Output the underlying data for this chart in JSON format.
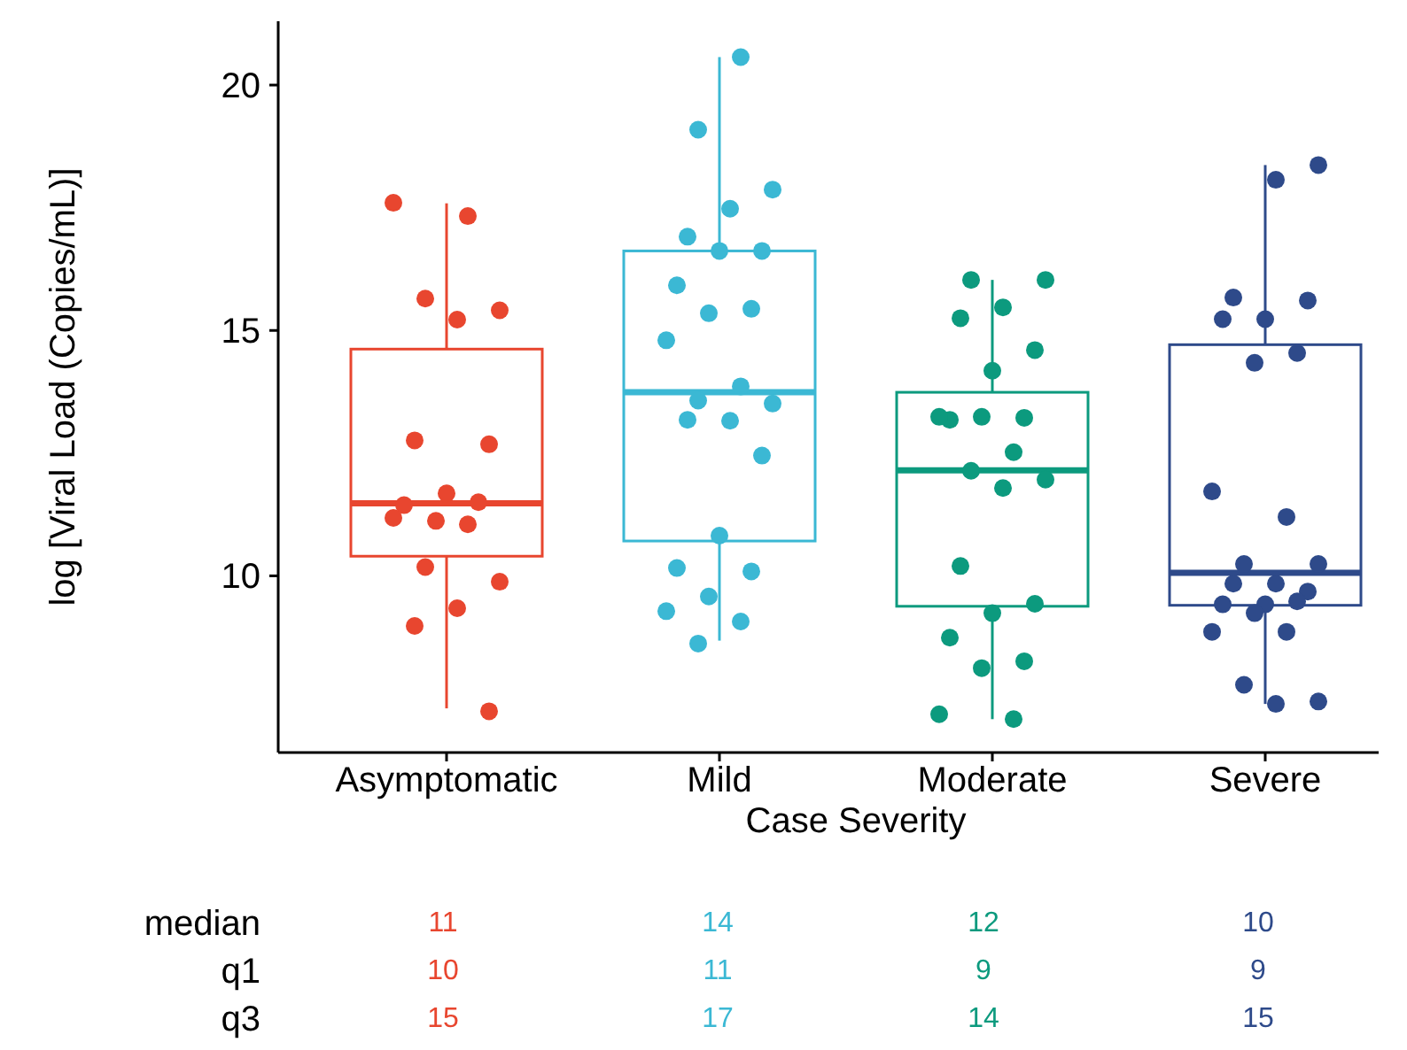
{
  "chart_data": {
    "type": "box",
    "xlabel": "Case Severity",
    "ylabel": "log [Viral Load (Copies/mL)]",
    "categories": [
      "Asymptomatic",
      "Mild",
      "Moderate",
      "Severe"
    ],
    "colors": [
      "#e8462f",
      "#3bb8d4",
      "#0c9a7e",
      "#2e4a8a"
    ],
    "boxes": [
      {
        "low": 7.3,
        "q1": 10.4,
        "median": 11.48,
        "q3": 14.62,
        "high": 17.59
      },
      {
        "low": 8.68,
        "q1": 10.71,
        "median": 13.74,
        "q3": 16.62,
        "high": 20.57
      },
      {
        "low": 7.08,
        "q1": 9.38,
        "median": 12.15,
        "q3": 13.74,
        "high": 16.03
      },
      {
        "low": 7.39,
        "q1": 9.4,
        "median": 10.06,
        "q3": 14.71,
        "high": 18.37
      }
    ],
    "series": [
      {
        "type": "scatter",
        "color": "#e8462f",
        "x": [
          "Asymptomatic",
          "Asymptomatic",
          "Asymptomatic",
          "Asymptomatic",
          "Asymptomatic",
          "Asymptomatic",
          "Asymptomatic",
          "Asymptomatic",
          "Asymptomatic",
          "Asymptomatic",
          "Asymptomatic",
          "Asymptomatic",
          "Asymptomatic",
          "Asymptomatic",
          "Asymptomatic",
          "Asymptomatic",
          "Asymptomatic",
          "Asymptomatic"
        ],
        "values": [
          17.6,
          17.33,
          15.65,
          15.41,
          15.22,
          12.76,
          12.68,
          11.68,
          11.44,
          11.5,
          11.12,
          11.18,
          11.05,
          10.18,
          9.88,
          9.34,
          8.98,
          7.24
        ]
      },
      {
        "type": "scatter",
        "color": "#3bb8d4",
        "x": [
          "Mild",
          "Mild",
          "Mild",
          "Mild",
          "Mild",
          "Mild",
          "Mild",
          "Mild",
          "Mild",
          "Mild",
          "Mild",
          "Mild",
          "Mild",
          "Mild",
          "Mild",
          "Mild",
          "Mild",
          "Mild",
          "Mild",
          "Mild",
          "Mild",
          "Mild",
          "Mild",
          "Mild"
        ],
        "values": [
          20.57,
          19.09,
          17.87,
          17.48,
          16.91,
          16.62,
          16.62,
          15.92,
          15.44,
          15.35,
          14.8,
          13.86,
          13.57,
          13.51,
          13.16,
          13.18,
          12.45,
          10.82,
          10.16,
          10.09,
          9.58,
          9.28,
          9.07,
          8.62
        ]
      },
      {
        "type": "scatter",
        "color": "#0c9a7e",
        "x": [
          "Moderate",
          "Moderate",
          "Moderate",
          "Moderate",
          "Moderate",
          "Moderate",
          "Moderate",
          "Moderate",
          "Moderate",
          "Moderate",
          "Moderate",
          "Moderate",
          "Moderate",
          "Moderate",
          "Moderate",
          "Moderate",
          "Moderate",
          "Moderate",
          "Moderate",
          "Moderate",
          "Moderate",
          "Moderate"
        ],
        "values": [
          16.03,
          16.03,
          15.47,
          15.25,
          14.6,
          14.18,
          13.18,
          13.22,
          13.24,
          13.24,
          12.52,
          12.14,
          11.96,
          11.79,
          10.2,
          9.43,
          9.24,
          8.74,
          8.26,
          8.12,
          7.18,
          7.08
        ]
      },
      {
        "type": "scatter",
        "color": "#2e4a8a",
        "x": [
          "Severe",
          "Severe",
          "Severe",
          "Severe",
          "Severe",
          "Severe",
          "Severe",
          "Severe",
          "Severe",
          "Severe",
          "Severe",
          "Severe",
          "Severe",
          "Severe",
          "Severe",
          "Severe",
          "Severe",
          "Severe",
          "Severe",
          "Severe",
          "Severe",
          "Severe",
          "Severe",
          "Severe"
        ],
        "values": [
          18.37,
          18.07,
          15.67,
          15.61,
          15.23,
          15.23,
          14.54,
          14.34,
          11.72,
          11.2,
          10.24,
          10.24,
          9.84,
          9.84,
          9.68,
          9.42,
          9.42,
          9.48,
          9.24,
          8.86,
          8.86,
          7.78,
          7.44,
          7.39
        ]
      }
    ],
    "ylim": [
      6.4,
      21.3
    ],
    "yticks": [
      10,
      15,
      20
    ],
    "marker": "circle",
    "annotations": [
      "median",
      "11",
      "14",
      "12",
      "10",
      "q1",
      "10",
      "11",
      "9",
      "9",
      "q3",
      "15",
      "17",
      "14",
      "15"
    ]
  }
}
